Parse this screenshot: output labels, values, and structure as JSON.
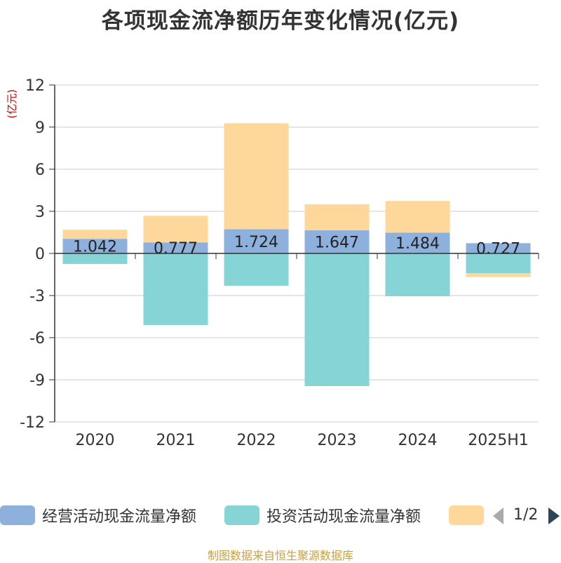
{
  "title": "各项现金流净额历年变化情况(亿元)",
  "source": "制图数据来自恒生聚源数据库",
  "pager": "1/2",
  "chart_data": {
    "type": "bar",
    "stacked": true,
    "ylabel": "(亿元)",
    "ylim": [
      -12,
      12
    ],
    "yticks": [
      12,
      9,
      6,
      3,
      0,
      -3,
      -6,
      -9,
      -12
    ],
    "categories": [
      "2020",
      "2021",
      "2022",
      "2023",
      "2024",
      "2025H1"
    ],
    "series": [
      {
        "name": "经营活动现金流量净额",
        "color": "#8eb0dc",
        "values": [
          1.042,
          0.777,
          1.724,
          1.647,
          1.484,
          0.727
        ],
        "labels": [
          "1.042",
          "0.777",
          "1.724",
          "1.647",
          "1.484",
          "0.727"
        ]
      },
      {
        "name": "投资活动现金流量净额",
        "color": "#86d4d6",
        "values": [
          -0.75,
          -5.1,
          -2.3,
          -9.45,
          -3.05,
          -1.4
        ]
      },
      {
        "name": "",
        "color": "#fdd89a",
        "values": [
          0.65,
          1.9,
          7.55,
          1.85,
          2.25,
          -0.28
        ]
      }
    ],
    "grid": true,
    "legend": "bottom"
  }
}
